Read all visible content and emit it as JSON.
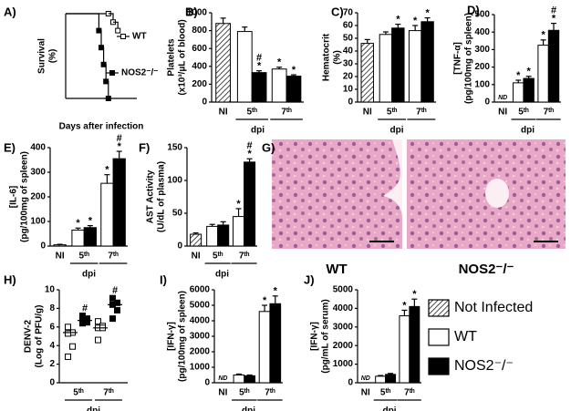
{
  "chart_data": [
    {
      "type": "line",
      "label": "A)",
      "ylabel": [
        "Survival",
        "(%)"
      ],
      "xlabel": "Days after infection",
      "xlim": [
        0,
        15
      ],
      "ylim": [
        0,
        100
      ],
      "series": [
        {
          "name": "WT",
          "fill": "white",
          "x": [
            0,
            9,
            10,
            11
          ],
          "y": [
            100,
            100,
            90,
            80
          ]
        },
        {
          "name": "NOS2⁻/⁻",
          "fill": "black",
          "x": [
            0,
            7,
            7.5,
            8,
            8.5,
            9
          ],
          "y": [
            100,
            80,
            60,
            40,
            20,
            0
          ]
        }
      ]
    },
    {
      "type": "bar",
      "label": "B)",
      "ylabel": [
        "Platelets",
        "(x10³/µL of blood)"
      ],
      "xlabel": "dpi",
      "categories": [
        "NI",
        "5ᵗʰ",
        "7ᵗʰ"
      ],
      "ylim": [
        0,
        1000
      ],
      "yticks": [
        0,
        200,
        400,
        600,
        800,
        1000
      ],
      "series": [
        {
          "fill": "hatch",
          "values": [
            880,
            null,
            null
          ],
          "errors": [
            60,
            null,
            null
          ]
        },
        {
          "fill": "white",
          "values": [
            null,
            790,
            370
          ],
          "errors": [
            null,
            50,
            20
          ],
          "sig": [
            null,
            null,
            [
              "*"
            ]
          ]
        },
        {
          "fill": "black",
          "values": [
            null,
            330,
            290
          ],
          "errors": [
            null,
            20,
            15
          ],
          "sig": [
            null,
            [
              "#",
              "*"
            ],
            [
              "*"
            ]
          ]
        }
      ]
    },
    {
      "type": "bar",
      "label": "C)",
      "ylabel": [
        "Hematocrit",
        "(%)"
      ],
      "xlabel": "dpi",
      "categories": [
        "NI",
        "5ᵗʰ",
        "7ᵗʰ"
      ],
      "ylim": [
        0,
        70
      ],
      "yticks": [
        0,
        10,
        20,
        30,
        40,
        50,
        60,
        70
      ],
      "series": [
        {
          "fill": "hatch",
          "values": [
            46,
            null,
            null
          ],
          "errors": [
            3,
            null,
            null
          ]
        },
        {
          "fill": "white",
          "values": [
            null,
            53,
            56
          ],
          "errors": [
            null,
            2,
            4
          ],
          "sig": [
            null,
            null,
            [
              "*"
            ]
          ]
        },
        {
          "fill": "black",
          "values": [
            null,
            58,
            63
          ],
          "errors": [
            null,
            3,
            3
          ],
          "sig": [
            null,
            [
              "*"
            ],
            [
              "*"
            ]
          ]
        }
      ]
    },
    {
      "type": "bar",
      "label": "D)",
      "ylabel": [
        "[TNF-α]",
        "(pg/100mg of spleen)"
      ],
      "xlabel": "dpi",
      "categories": [
        "NI",
        "5ᵗʰ",
        "7ᵗʰ"
      ],
      "ylim": [
        0,
        500
      ],
      "yticks": [
        0,
        100,
        200,
        300,
        400,
        500
      ],
      "series": [
        {
          "fill": "hatch",
          "values": [
            null,
            null,
            null
          ],
          "value_labels": [
            "ND",
            null,
            null
          ],
          "errors": [
            null,
            null,
            null
          ]
        },
        {
          "fill": "white",
          "values": [
            null,
            110,
            325
          ],
          "errors": [
            null,
            15,
            30
          ],
          "sig": [
            null,
            [
              "*"
            ],
            [
              "*"
            ]
          ]
        },
        {
          "fill": "black",
          "values": [
            null,
            135,
            410
          ],
          "errors": [
            null,
            12,
            40
          ],
          "sig": [
            null,
            [
              "*"
            ],
            [
              "#",
              "*"
            ]
          ]
        }
      ]
    },
    {
      "type": "bar",
      "label": "E)",
      "ylabel": [
        "[IL-6]",
        "(pg/100mg of spleen)"
      ],
      "xlabel": "dpi",
      "categories": [
        "NI",
        "5ᵗʰ",
        "7ᵗʰ"
      ],
      "ylim": [
        0,
        400
      ],
      "yticks": [
        0,
        100,
        200,
        300,
        400
      ],
      "series": [
        {
          "fill": "hatch",
          "values": [
            5,
            null,
            null
          ],
          "errors": [
            2,
            null,
            null
          ]
        },
        {
          "fill": "white",
          "values": [
            null,
            65,
            255
          ],
          "errors": [
            null,
            8,
            35
          ],
          "sig": [
            null,
            [
              "*"
            ],
            [
              "*"
            ]
          ]
        },
        {
          "fill": "black",
          "values": [
            null,
            75,
            355
          ],
          "errors": [
            null,
            8,
            30
          ],
          "sig": [
            null,
            [
              "*"
            ],
            [
              "#",
              "*"
            ]
          ]
        }
      ]
    },
    {
      "type": "bar",
      "label": "F)",
      "ylabel": [
        "AST Activity",
        "(U/dL of plasma)"
      ],
      "xlabel": "dpi",
      "categories": [
        "NI",
        "5ᵗʰ",
        "7ᵗʰ"
      ],
      "ylim": [
        0,
        150
      ],
      "yticks": [
        0,
        50,
        100,
        150
      ],
      "series": [
        {
          "fill": "hatch",
          "values": [
            18,
            null,
            null
          ],
          "errors": [
            2,
            null,
            null
          ]
        },
        {
          "fill": "white",
          "values": [
            null,
            30,
            45
          ],
          "errors": [
            null,
            3,
            12
          ],
          "sig": [
            null,
            null,
            [
              "*"
            ]
          ]
        },
        {
          "fill": "black",
          "values": [
            null,
            32,
            128
          ],
          "errors": [
            null,
            5,
            5
          ],
          "sig": [
            null,
            null,
            [
              "#",
              "*"
            ]
          ]
        }
      ]
    },
    {
      "type": "image",
      "label": "G)",
      "captions": [
        "WT",
        "NOS2⁻/⁻"
      ]
    },
    {
      "type": "scatter",
      "label": "H)",
      "ylabel": [
        "DENV-2",
        "(Log of PFU/g)"
      ],
      "xlabel": "dpi",
      "categories": [
        "5ᵗʰ",
        "7ᵗʰ"
      ],
      "ylim": [
        0,
        10
      ],
      "yticks": [
        0,
        2,
        4,
        6,
        8,
        10
      ],
      "series": [
        {
          "fill": "white",
          "values": [
            [
              6.0,
              5.4,
              5.3,
              3.9,
              2.8
            ],
            [
              6.6,
              6.1,
              5.9,
              5.9,
              4.6
            ]
          ],
          "medians": [
            5.4,
            5.9
          ]
        },
        {
          "fill": "black",
          "values": [
            [
              7.2,
              6.9,
              6.7,
              6.5,
              6.4
            ],
            [
              9.1,
              8.6,
              8.4,
              7.8,
              6.9
            ]
          ],
          "medians": [
            6.7,
            8.4
          ],
          "sig": [
            [
              "#"
            ],
            [
              "#"
            ]
          ]
        }
      ]
    },
    {
      "type": "bar",
      "label": "I)",
      "ylabel": [
        "[IFN-γ]",
        "(pg/100mg of spleen)"
      ],
      "xlabel": "dpi",
      "categories": [
        "NI",
        "5ᵗʰ",
        "7ᵗʰ"
      ],
      "ylim": [
        0,
        6000
      ],
      "yticks": [
        0,
        1000,
        2000,
        3000,
        4000,
        5000,
        6000
      ],
      "series": [
        {
          "fill": "hatch",
          "values": [
            null,
            null,
            null
          ],
          "value_labels": [
            "ND",
            null,
            null
          ],
          "errors": [
            null,
            null,
            null
          ]
        },
        {
          "fill": "white",
          "values": [
            null,
            500,
            4600
          ],
          "errors": [
            null,
            60,
            400
          ],
          "sig": [
            null,
            null,
            [
              "*"
            ]
          ]
        },
        {
          "fill": "black",
          "values": [
            null,
            450,
            5100
          ],
          "errors": [
            null,
            50,
            500
          ],
          "sig": [
            null,
            null,
            [
              "*"
            ]
          ]
        }
      ]
    },
    {
      "type": "bar",
      "label": "J)",
      "ylabel": [
        "[IFN-γ]",
        "(pg/mL of serum)"
      ],
      "xlabel": "dpi",
      "categories": [
        "NI",
        "5ᵗʰ",
        "7ᵗʰ"
      ],
      "ylim": [
        0,
        5000
      ],
      "yticks": [
        0,
        1000,
        2000,
        3000,
        4000,
        5000
      ],
      "series": [
        {
          "fill": "hatch",
          "values": [
            null,
            null,
            null
          ],
          "value_labels": [
            "ND",
            null,
            null
          ],
          "errors": [
            null,
            null,
            null
          ]
        },
        {
          "fill": "white",
          "values": [
            null,
            350,
            3600
          ],
          "errors": [
            null,
            40,
            300
          ],
          "sig": [
            null,
            null,
            [
              "*"
            ]
          ]
        },
        {
          "fill": "black",
          "values": [
            null,
            450,
            4100
          ],
          "errors": [
            null,
            50,
            400
          ],
          "sig": [
            null,
            null,
            [
              "*"
            ]
          ]
        }
      ]
    }
  ],
  "legend": [
    {
      "name": "Not Infected",
      "fill": "hatch"
    },
    {
      "name": "WT",
      "fill": "white"
    },
    {
      "name": "NOS2⁻/⁻",
      "fill": "black"
    }
  ]
}
